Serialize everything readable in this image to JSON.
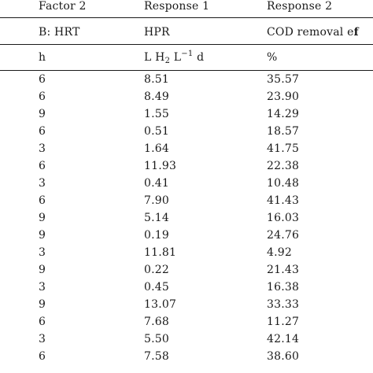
{
  "header": {
    "col1": "Factor 2",
    "col2": "Response 1",
    "col3": "Response 2"
  },
  "subheader": {
    "col1": "B: HRT",
    "col2": "HPR",
    "col3_main": "COD removal e",
    "col3_trunc": "f"
  },
  "units": {
    "col1": "h",
    "col2_L": "L H",
    "col2_sub": "2",
    "col2_mid": " L",
    "col2_sup": "−1",
    "col2_d": " d",
    "col3": "%"
  },
  "rows": [
    {
      "hrt": "6",
      "hpr": "8.51",
      "cod": "35.57"
    },
    {
      "hrt": "6",
      "hpr": "8.49",
      "cod": "23.90"
    },
    {
      "hrt": "9",
      "hpr": "1.55",
      "cod": "14.29"
    },
    {
      "hrt": "6",
      "hpr": "0.51",
      "cod": "18.57"
    },
    {
      "hrt": "3",
      "hpr": "1.64",
      "cod": "41.75"
    },
    {
      "hrt": "6",
      "hpr": "11.93",
      "cod": "22.38"
    },
    {
      "hrt": "3",
      "hpr": "0.41",
      "cod": "10.48"
    },
    {
      "hrt": "6",
      "hpr": "7.90",
      "cod": "41.43"
    },
    {
      "hrt": "9",
      "hpr": "5.14",
      "cod": "16.03"
    },
    {
      "hrt": "9",
      "hpr": "0.19",
      "cod": "24.76"
    },
    {
      "hrt": "3",
      "hpr": "11.81",
      "cod": "4.92"
    },
    {
      "hrt": "9",
      "hpr": "0.22",
      "cod": "21.43"
    },
    {
      "hrt": "3",
      "hpr": "0.45",
      "cod": "16.38"
    },
    {
      "hrt": "9",
      "hpr": "13.07",
      "cod": "33.33"
    },
    {
      "hrt": "6",
      "hpr": "7.68",
      "cod": "11.27"
    },
    {
      "hrt": "3",
      "hpr": "5.50",
      "cod": "42.14"
    },
    {
      "hrt": "6",
      "hpr": "7.58",
      "cod": "38.60"
    }
  ]
}
